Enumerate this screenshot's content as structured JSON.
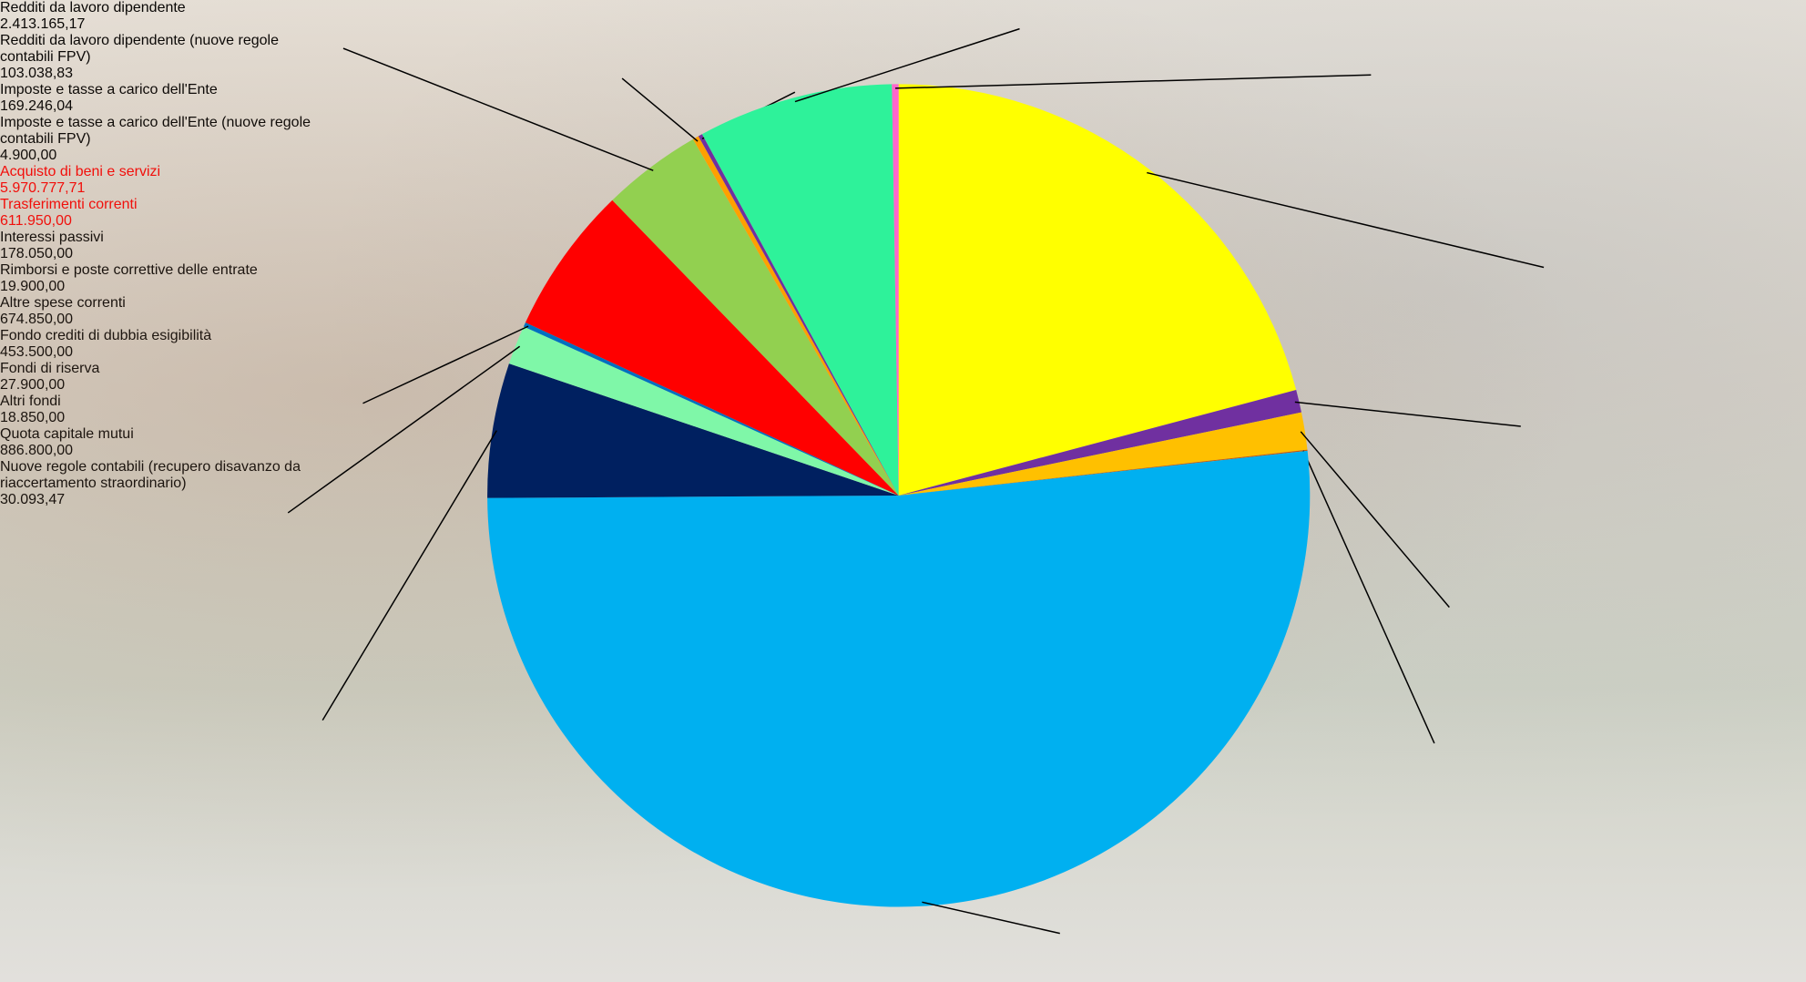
{
  "chart_data": {
    "type": "pie",
    "categories": [
      "Redditi da lavoro dipendente",
      "Redditi da lavoro dipendente (nuove regole contabili FPV)",
      "Imposte e tasse a carico dell'Ente",
      "Imposte e tasse a carico dell'Ente (nuove regole contabili FPV)",
      "Acquisto di beni e servizi",
      "Trasferimenti correnti",
      "Interessi passivi",
      "Rimborsi e poste correttive delle entrate",
      "Altre spese correnti",
      "Fondo crediti di dubbia esigibilità",
      "Fondi di riserva",
      "Altri fondi",
      "Quota capitale mutui",
      "Nuove regole contabili (recupero disavanzo da riaccertamento straordinario)"
    ],
    "values": [
      2413165.17,
      103038.83,
      169246.04,
      4900,
      5970777.71,
      611950,
      178050,
      19900,
      674850,
      453500,
      27900,
      18850,
      886800,
      30093.47
    ],
    "value_labels": [
      "2.413.165,17",
      "103.038,83",
      "169.246,04",
      "4.900,00",
      "5.970.777,71",
      "611.950,00",
      "178.050,00",
      "19.900,00",
      "674.850,00",
      "453.500,00",
      "27.900,00",
      "18.850,00",
      "886.800,00",
      "30.093,47"
    ],
    "colors": [
      "#ffff00",
      "#7030a0",
      "#ffc000",
      "#c55a11",
      "#00b0f0",
      "#002060",
      "#7ff7a8",
      "#0070c0",
      "#ff0000",
      "#92d050",
      "#ffa000",
      "#7030a0",
      "#2ef29a",
      "#ff66cc"
    ],
    "label_colors": [
      "#000000",
      "#000000",
      "#000000",
      "#000000",
      "#ff0000",
      "#ff0000",
      "#000000",
      "#000000",
      "#000000",
      "#000000",
      "#000000",
      "#000000",
      "#000000",
      "#000000"
    ]
  }
}
